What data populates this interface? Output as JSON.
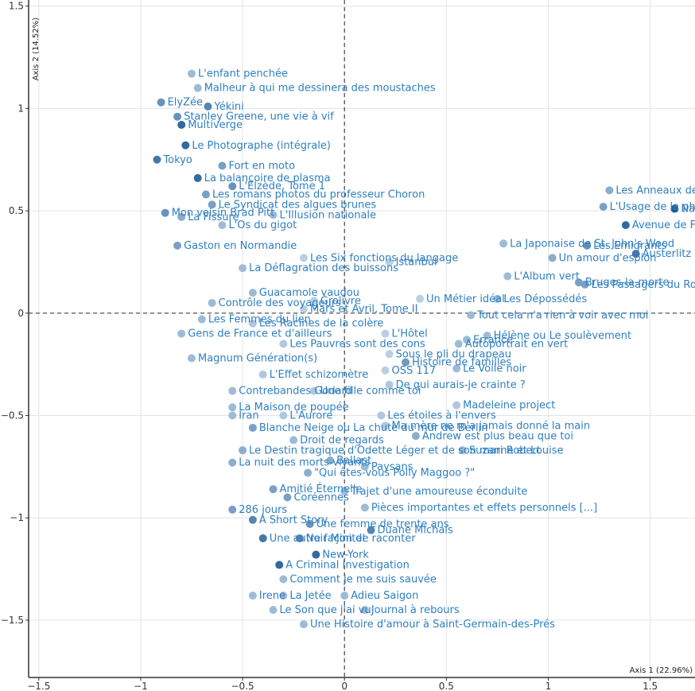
{
  "chart_data": {
    "type": "scatter",
    "xlabel": "Axis 1 (22.96%)",
    "ylabel": "Axis 2 (14.52%)",
    "xlim": [
      -1.55,
      1.72
    ],
    "ylim": [
      -1.78,
      1.53
    ],
    "xticks": [
      -1.5,
      -1,
      -0.5,
      0,
      0.5,
      1,
      1.5
    ],
    "yticks": [
      -1.5,
      -1,
      -0.5,
      0,
      0.5,
      1,
      1.5
    ],
    "xtick_labels": [
      "−1.5",
      "−1",
      "−0.5",
      "0",
      "0.5",
      "1",
      "1.5"
    ],
    "ytick_labels": [
      "−1.5",
      "−1",
      "−0.5",
      "0",
      "0.5",
      "1",
      "1.5"
    ],
    "grid": true,
    "reference_lines": {
      "x": 0,
      "y": 0,
      "style": "dashed"
    },
    "colors": {
      "label": "#2f7fc0",
      "point_dark": "#1f5d98",
      "point_light": "#d4e3f1",
      "grid": "#e4e4e4",
      "axis": "#333333"
    },
    "points": [
      {
        "label": "L'enfant penchée",
        "x": -0.75,
        "y": 1.17,
        "intensity": 0.3
      },
      {
        "label": "Malheur à qui me dessinera des moustaches",
        "x": -0.72,
        "y": 1.1,
        "intensity": 0.3
      },
      {
        "label": "ElyZée",
        "x": -0.9,
        "y": 1.03,
        "intensity": 0.6
      },
      {
        "label": "Yékini",
        "x": -0.67,
        "y": 1.01,
        "intensity": 0.7
      },
      {
        "label": "Stanley Greene, une vie à vif",
        "x": -0.82,
        "y": 0.96,
        "intensity": 0.6
      },
      {
        "label": "Multiverge",
        "x": -0.8,
        "y": 0.92,
        "intensity": 0.9
      },
      {
        "label": "Le Photographe (intégrale)",
        "x": -0.78,
        "y": 0.82,
        "intensity": 0.9
      },
      {
        "label": "Tokyo",
        "x": -0.92,
        "y": 0.75,
        "intensity": 0.8
      },
      {
        "label": "Fort en moto",
        "x": -0.6,
        "y": 0.72,
        "intensity": 0.5
      },
      {
        "label": "La balançoire de plasma",
        "x": -0.72,
        "y": 0.66,
        "intensity": 0.9
      },
      {
        "label": "L'Elzède, Tome 1",
        "x": -0.55,
        "y": 0.62,
        "intensity": 0.6
      },
      {
        "label": "Les romans photos du professeur Choron",
        "x": -0.68,
        "y": 0.58,
        "intensity": 0.5
      },
      {
        "label": "Le Syndicat des algues brunes",
        "x": -0.65,
        "y": 0.53,
        "intensity": 0.5
      },
      {
        "label": "Mon voisin Brad Pitt",
        "x": -0.88,
        "y": 0.49,
        "intensity": 0.6
      },
      {
        "label": "La Fissure",
        "x": -0.8,
        "y": 0.47,
        "intensity": 0.4
      },
      {
        "label": "L'Illusion nationale",
        "x": -0.35,
        "y": 0.48,
        "intensity": 0.3
      },
      {
        "label": "L'Os du gigot",
        "x": -0.6,
        "y": 0.43,
        "intensity": 0.3
      },
      {
        "label": "Gaston en Normandie",
        "x": -0.82,
        "y": 0.33,
        "intensity": 0.5
      },
      {
        "label": "La Déflagration des buissons",
        "x": -0.5,
        "y": 0.22,
        "intensity": 0.3
      },
      {
        "label": "Les Six fonctions du langage",
        "x": -0.2,
        "y": 0.27,
        "intensity": 0.15
      },
      {
        "label": "Istanbul",
        "x": 0.22,
        "y": 0.25,
        "intensity": 0.15
      },
      {
        "label": "Guacamole vaudou",
        "x": -0.45,
        "y": 0.1,
        "intensity": 0.3
      },
      {
        "label": "Grolivre",
        "x": -0.15,
        "y": 0.06,
        "intensity": 0.15
      },
      {
        "label": "Contrôle des voyageurs",
        "x": -0.65,
        "y": 0.05,
        "intensity": 0.3
      },
      {
        "label": "Mars et Avril, Tome II",
        "x": -0.2,
        "y": 0.02,
        "intensity": 0.15
      },
      {
        "label": "Un Métier idéal",
        "x": 0.37,
        "y": 0.07,
        "intensity": 0.15
      },
      {
        "label": "Les Femmes du lien",
        "x": -0.7,
        "y": -0.03,
        "intensity": 0.3
      },
      {
        "label": "Les Racines de la colère",
        "x": -0.45,
        "y": -0.05,
        "intensity": 0.2
      },
      {
        "label": "L'Hôtel",
        "x": 0.2,
        "y": -0.1,
        "intensity": 0.15
      },
      {
        "label": "Gens de France et d'ailleurs",
        "x": -0.8,
        "y": -0.1,
        "intensity": 0.3
      },
      {
        "label": "Les Pauvres sont des cons",
        "x": -0.3,
        "y": -0.15,
        "intensity": 0.2
      },
      {
        "label": "Sous le pli du drapeau",
        "x": 0.22,
        "y": -0.2,
        "intensity": 0.15
      },
      {
        "label": "Magnum Génération(s)",
        "x": -0.75,
        "y": -0.22,
        "intensity": 0.3
      },
      {
        "label": "OSS 117",
        "x": 0.2,
        "y": -0.28,
        "intensity": 0.15
      },
      {
        "label": "Histoire de familles",
        "x": 0.3,
        "y": -0.24,
        "intensity": 0.55
      },
      {
        "label": "L'Effet schizomètre",
        "x": -0.4,
        "y": -0.3,
        "intensity": 0.2
      },
      {
        "label": "Contrebandes Godard",
        "x": -0.55,
        "y": -0.38,
        "intensity": 0.3
      },
      {
        "label": "Une fille comme toi",
        "x": -0.15,
        "y": -0.38,
        "intensity": 0.2
      },
      {
        "label": "De qui aurais-je crainte ?",
        "x": 0.22,
        "y": -0.35,
        "intensity": 0.2
      },
      {
        "label": "La Maison de poupée",
        "x": -0.55,
        "y": -0.46,
        "intensity": 0.3
      },
      {
        "label": "Iran",
        "x": -0.55,
        "y": -0.5,
        "intensity": 0.3
      },
      {
        "label": "L'Aurore",
        "x": -0.3,
        "y": -0.5,
        "intensity": 0.2
      },
      {
        "label": "Les étoiles à l'envers",
        "x": 0.18,
        "y": -0.5,
        "intensity": 0.2
      },
      {
        "label": "Madeleine project",
        "x": 0.55,
        "y": -0.45,
        "intensity": 0.2
      },
      {
        "label": "Blanche Neige ou La chute du mur de Berlin",
        "x": -0.45,
        "y": -0.56,
        "intensity": 0.5
      },
      {
        "label": "Ma mère ne m'a jamais donné la main",
        "x": 0.2,
        "y": -0.55,
        "intensity": 0.2
      },
      {
        "label": "Droit de regards",
        "x": -0.25,
        "y": -0.62,
        "intensity": 0.3
      },
      {
        "label": "Andrew est plus beau que toi",
        "x": 0.35,
        "y": -0.6,
        "intensity": 0.4
      },
      {
        "label": "Le Destin tragique d'Odette Léger et de son mari Robert",
        "x": -0.5,
        "y": -0.67,
        "intensity": 0.4
      },
      {
        "label": "Suzanne et Louise",
        "x": 0.58,
        "y": -0.67,
        "intensity": 0.3
      },
      {
        "label": "La nuit des morts-vivants",
        "x": -0.55,
        "y": -0.73,
        "intensity": 0.4
      },
      {
        "label": "Ballast",
        "x": -0.07,
        "y": -0.72,
        "intensity": 0.4
      },
      {
        "label": "Paysans",
        "x": 0.1,
        "y": -0.75,
        "intensity": 0.3
      },
      {
        "label": "\"Qui êtes-vous Polly Maggoo ?\"",
        "x": -0.18,
        "y": -0.78,
        "intensity": 0.4
      },
      {
        "label": "Amitié Éternelle",
        "x": -0.35,
        "y": -0.86,
        "intensity": 0.5
      },
      {
        "label": "Trajet d'une amoureuse éconduite",
        "x": 0.0,
        "y": -0.87,
        "intensity": 0.3
      },
      {
        "label": "Coréennes",
        "x": -0.28,
        "y": -0.9,
        "intensity": 0.5
      },
      {
        "label": "Pièces importantes et effets personnels [...]",
        "x": 0.1,
        "y": -0.95,
        "intensity": 0.3
      },
      {
        "label": "286 jours",
        "x": -0.55,
        "y": -0.96,
        "intensity": 0.5
      },
      {
        "label": "Une femme de trente ans",
        "x": -0.17,
        "y": -1.03,
        "intensity": 0.6
      },
      {
        "label": "A Short Story",
        "x": -0.45,
        "y": -1.01,
        "intensity": 0.7
      },
      {
        "label": "Une autre façon de raconter",
        "x": -0.4,
        "y": -1.1,
        "intensity": 0.8
      },
      {
        "label": "Duane Michals",
        "x": 0.13,
        "y": -1.06,
        "intensity": 0.7
      },
      {
        "label": "Noir Minitel",
        "x": -0.22,
        "y": -1.1,
        "intensity": 0.7
      },
      {
        "label": "A Criminal Investigation",
        "x": -0.32,
        "y": -1.23,
        "intensity": 0.9
      },
      {
        "label": "New-York",
        "x": -0.14,
        "y": -1.18,
        "intensity": 0.9
      },
      {
        "label": "Comment je me suis sauvée",
        "x": -0.3,
        "y": -1.3,
        "intensity": 0.3
      },
      {
        "label": "Irene",
        "x": -0.45,
        "y": -1.38,
        "intensity": 0.3
      },
      {
        "label": "La Jetée",
        "x": -0.3,
        "y": -1.38,
        "intensity": 0.3
      },
      {
        "label": "Adieu Saigon",
        "x": 0.0,
        "y": -1.38,
        "intensity": 0.3
      },
      {
        "label": "Journal à rebours",
        "x": 0.1,
        "y": -1.45,
        "intensity": 0.3
      },
      {
        "label": "Le Son que j'ai vu",
        "x": -0.35,
        "y": -1.45,
        "intensity": 0.3
      },
      {
        "label": "Une Histoire d'amour à Saint-Germain-des-Prés",
        "x": -0.2,
        "y": -1.52,
        "intensity": 0.3
      },
      {
        "label": "Les Anneaux de Saturne",
        "x": 1.3,
        "y": 0.6,
        "intensity": 0.4
      },
      {
        "label": "L'Usage de la photo",
        "x": 1.27,
        "y": 0.52,
        "intensity": 0.5
      },
      {
        "label": "Avenue de France",
        "x": 1.38,
        "y": 0.43,
        "intensity": 0.9
      },
      {
        "label": "Nadja",
        "x": 1.62,
        "y": 0.51,
        "intensity": 1.0
      },
      {
        "label": "La Japonaise de St. John's Wood",
        "x": 0.78,
        "y": 0.34,
        "intensity": 0.3
      },
      {
        "label": "Les Emigrants",
        "x": 1.19,
        "y": 0.33,
        "intensity": 0.6
      },
      {
        "label": "Austerlitz",
        "x": 1.43,
        "y": 0.29,
        "intensity": 0.8
      },
      {
        "label": "Un amour d'espion",
        "x": 1.02,
        "y": 0.27,
        "intensity": 0.4
      },
      {
        "label": "L'Album vert",
        "x": 0.8,
        "y": 0.18,
        "intensity": 0.3
      },
      {
        "label": "Bruges-la-morte",
        "x": 1.15,
        "y": 0.15,
        "intensity": 0.5
      },
      {
        "label": "Les Passagers du Roissy-Express",
        "x": 1.18,
        "y": 0.14,
        "intensity": 0.5
      },
      {
        "label": "Les Dépossédés",
        "x": 0.75,
        "y": 0.07,
        "intensity": 0.3
      },
      {
        "label": "Tout cela n'a rien à voir avec moi",
        "x": 0.62,
        "y": -0.01,
        "intensity": 0.3
      },
      {
        "label": "Errance",
        "x": 0.6,
        "y": -0.13,
        "intensity": 0.3
      },
      {
        "label": "Autoportrait en vert",
        "x": 0.56,
        "y": -0.15,
        "intensity": 0.3
      },
      {
        "label": "Hélène ou Le soulèvement",
        "x": 0.7,
        "y": -0.11,
        "intensity": 0.3
      },
      {
        "label": "Le Voile noir",
        "x": 0.55,
        "y": -0.27,
        "intensity": 0.3
      }
    ]
  }
}
